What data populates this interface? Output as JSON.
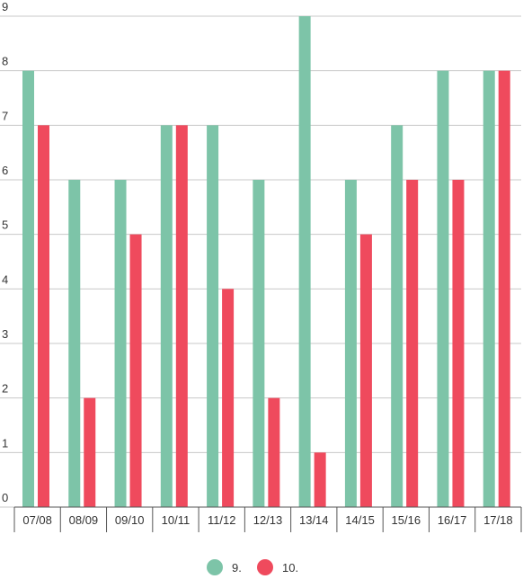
{
  "chart_data": {
    "type": "bar",
    "categories": [
      "07/08",
      "08/09",
      "09/10",
      "10/11",
      "11/12",
      "12/13",
      "13/14",
      "14/15",
      "15/16",
      "16/17",
      "17/18"
    ],
    "series": [
      {
        "name": "9.",
        "color": "#7dc4a8",
        "values": [
          8,
          6,
          6,
          7,
          7,
          6,
          9,
          6,
          7,
          8,
          8
        ]
      },
      {
        "name": "10.",
        "color": "#ef4a5d",
        "values": [
          7,
          2,
          5,
          7,
          4,
          2,
          1,
          5,
          6,
          6,
          8
        ]
      }
    ],
    "ylim": [
      0,
      9
    ],
    "yticks": [
      "0",
      "1",
      "2",
      "3",
      "4",
      "5",
      "6",
      "7",
      "8",
      "9"
    ],
    "grid": true,
    "legend": "bottom-center"
  }
}
